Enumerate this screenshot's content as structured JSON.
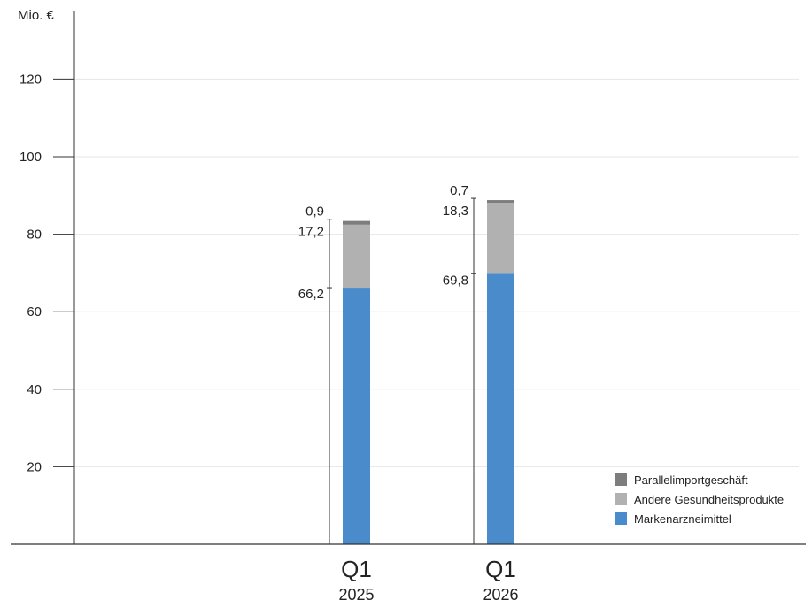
{
  "chart_data": {
    "type": "bar",
    "stacked": true,
    "ylabel": "Mio. €",
    "ylim": [
      0,
      135
    ],
    "yticks": [
      "20",
      "40",
      "60",
      "80",
      "100",
      "120"
    ],
    "grid": true,
    "legend_position": "bottom-right",
    "categories": [
      {
        "label": "Q1",
        "sublabel": "2025"
      },
      {
        "label": "Q1",
        "sublabel": "2026"
      }
    ],
    "series": [
      {
        "name": "Markenarzneimittel",
        "color": "#4a8bcb",
        "values": [
          66.2,
          69.8
        ],
        "labels": [
          "66,2",
          "69,8"
        ]
      },
      {
        "name": "Andere Gesundheitsprodukte",
        "color": "#b1b1b1",
        "values": [
          17.2,
          18.3
        ],
        "labels": [
          "17,2",
          "18,3"
        ]
      },
      {
        "name": "Parallelimportgeschäft",
        "color": "#7d7d7d",
        "values": [
          -0.9,
          0.7
        ],
        "labels": [
          "–0,9",
          "0,7"
        ]
      }
    ],
    "legend_order": [
      "Parallelimportgeschäft",
      "Andere Gesundheitsprodukte",
      "Markenarzneimittel"
    ]
  }
}
